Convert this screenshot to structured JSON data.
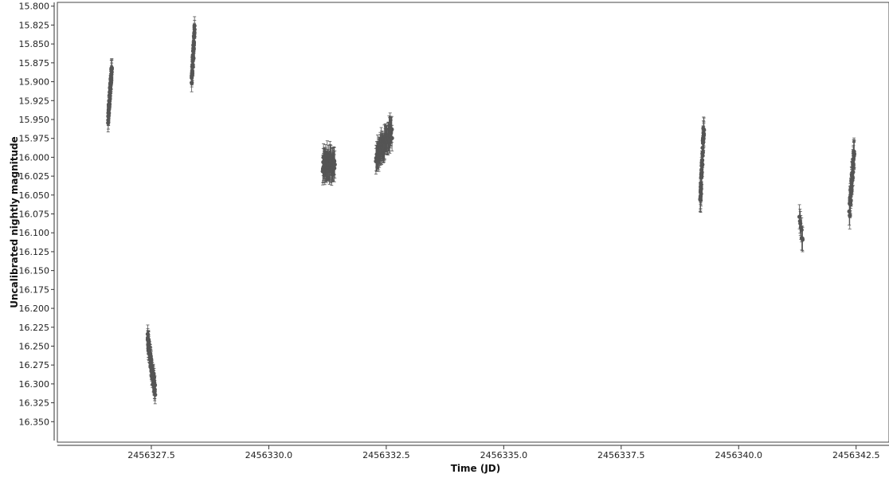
{
  "chart_data": {
    "type": "scatter",
    "xlabel": "Time (JD)",
    "ylabel": "Uncalibrated nightly magnitude",
    "xlim": [
      2456325.5,
      2456343.2
    ],
    "ylim": [
      16.375,
      15.795
    ],
    "y_axis_inverted": true,
    "grid": false,
    "legend": "none",
    "marker_color": "#555555",
    "error_bar_color": "#555555",
    "x_tick_labels": [
      "2456327.5",
      "2456330.0",
      "2456332.5",
      "2456335.0",
      "2456337.5",
      "2456340.0",
      "2456342.5"
    ],
    "y_tick_labels": [
      "15.800",
      "15.825",
      "15.850",
      "15.875",
      "15.900",
      "15.925",
      "15.950",
      "15.975",
      "16.000",
      "16.025",
      "16.050",
      "16.075",
      "16.100",
      "16.125",
      "16.150",
      "16.175",
      "16.200",
      "16.225",
      "16.250",
      "16.275",
      "16.300",
      "16.325",
      "16.350"
    ],
    "night_clusters": [
      {
        "x_start": 2456326.58,
        "x_end": 2456326.66,
        "y_start": 15.95,
        "y_end": 15.88,
        "count": 50,
        "scatter": 0.008,
        "error": 0.012
      },
      {
        "x_start": 2456327.42,
        "x_end": 2456327.58,
        "y_start": 16.24,
        "y_end": 16.31,
        "count": 80,
        "scatter": 0.01,
        "error": 0.012
      },
      {
        "x_start": 2456328.36,
        "x_end": 2456328.42,
        "y_start": 15.9,
        "y_end": 15.83,
        "count": 40,
        "scatter": 0.008,
        "error": 0.012
      },
      {
        "x_start": 2456331.15,
        "x_end": 2456331.4,
        "y_start": 16.01,
        "y_end": 16.01,
        "count": 60,
        "scatter": 0.016,
        "error": 0.018
      },
      {
        "x_start": 2456332.28,
        "x_end": 2456332.62,
        "y_start": 16.0,
        "y_end": 15.965,
        "count": 70,
        "scatter": 0.015,
        "error": 0.017
      },
      {
        "x_start": 2456339.18,
        "x_end": 2456339.26,
        "y_start": 16.06,
        "y_end": 15.96,
        "count": 45,
        "scatter": 0.012,
        "error": 0.016
      },
      {
        "x_start": 2456341.3,
        "x_end": 2456341.36,
        "y_start": 16.08,
        "y_end": 16.11,
        "count": 8,
        "scatter": 0.01,
        "error": 0.016
      },
      {
        "x_start": 2456342.36,
        "x_end": 2456342.46,
        "y_start": 16.07,
        "y_end": 15.99,
        "count": 45,
        "scatter": 0.01,
        "error": 0.018
      }
    ]
  }
}
